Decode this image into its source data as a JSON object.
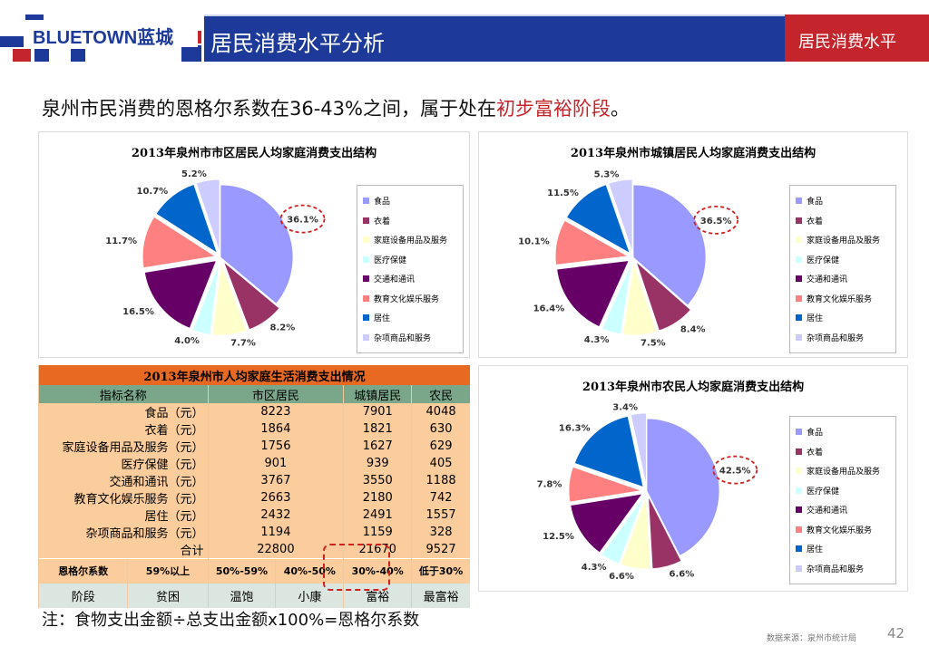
{
  "header": {
    "logo": "BLUETOWN蓝城",
    "title": "居民消费水平分析",
    "section": "居民消费水平"
  },
  "lead": {
    "text": "泉州市民消费的恩格尔系数在36-43%之间，属于处在",
    "highlight": "初步富裕阶段",
    "end": "。"
  },
  "colors": [
    "#9999ff",
    "#993366",
    "#ffffcc",
    "#ccffff",
    "#660066",
    "#ff8080",
    "#0066cc",
    "#ccccff"
  ],
  "chart_data": [
    {
      "type": "pie",
      "title": "2013年泉州市市区居民人均家庭消费支出结构",
      "categories": [
        "食品",
        "衣着",
        "家庭设备用品及服务",
        "医疗保健",
        "交通和通讯",
        "教育文化娱乐服务",
        "居住",
        "杂项商品和服务"
      ],
      "values": [
        36.1,
        8.2,
        7.7,
        4.0,
        16.5,
        11.7,
        10.7,
        5.2
      ],
      "labels": [
        "36.1%",
        "8.2%",
        "7.7%",
        "4.0%",
        "16.5%",
        "11.7%",
        "10.7%",
        "5.2%"
      ],
      "legend": "right"
    },
    {
      "type": "pie",
      "title": "2013年泉州市城镇居民人均家庭消费支出结构",
      "categories": [
        "食品",
        "衣着",
        "家庭设备用品及服务",
        "医疗保健",
        "交通和通讯",
        "教育文化娱乐服务",
        "居住",
        "杂项商品和服务"
      ],
      "values": [
        36.5,
        8.4,
        7.5,
        4.3,
        16.4,
        10.1,
        11.5,
        5.3
      ],
      "labels": [
        "36.5%",
        "8.4%",
        "7.5%",
        "4.3%",
        "16.4%",
        "10.1%",
        "11.5%",
        "5.3%"
      ],
      "legend": "right"
    },
    {
      "type": "pie",
      "title": "2013年泉州市农民人均家庭消费支出结构",
      "categories": [
        "食品",
        "衣着",
        "家庭设备用品及服务",
        "医疗保健",
        "交通和通讯",
        "教育文化娱乐服务",
        "居住",
        "杂项商品和服务"
      ],
      "values": [
        42.5,
        6.6,
        6.6,
        4.3,
        12.5,
        7.8,
        16.3,
        3.4
      ],
      "labels": [
        "42.5%",
        "6.6%",
        "6.6%",
        "4.3%",
        "12.5%",
        "7.8%",
        "16.3%",
        "3.4%"
      ],
      "legend": "right"
    }
  ],
  "table": {
    "title": "2013年泉州市人均家庭生活消费支出情况",
    "headers": [
      "指标名称",
      "市区居民",
      "城镇居民",
      "农民"
    ],
    "rows": [
      [
        "食品（元）",
        "8223",
        "7901",
        "4048"
      ],
      [
        "衣着（元）",
        "1864",
        "1821",
        "630"
      ],
      [
        "家庭设备用品及服务（元）",
        "1756",
        "1627",
        "629"
      ],
      [
        "医疗保健（元）",
        "901",
        "939",
        "405"
      ],
      [
        "交通和通讯（元）",
        "3767",
        "3550",
        "1188"
      ],
      [
        "教育文化娱乐服务（元）",
        "2663",
        "2180",
        "742"
      ],
      [
        "居住（元）",
        "2432",
        "2491",
        "1557"
      ],
      [
        "杂项商品和服务（元）",
        "1194",
        "1159",
        "328"
      ],
      [
        "合计",
        "22800",
        "21670",
        "9527"
      ]
    ],
    "engel": [
      "恩格尔系数",
      "59%以上",
      "50%-59%",
      "40%-50%",
      "30%-40%",
      "低于30%"
    ],
    "stage": [
      "阶段",
      "贫困",
      "温饱",
      "小康",
      "富裕",
      "最富裕"
    ]
  },
  "note": "注：食物支出金额÷总支出金额x100%=恩格尔系数",
  "source": "数据来源：泉州市统计局",
  "page": "42"
}
